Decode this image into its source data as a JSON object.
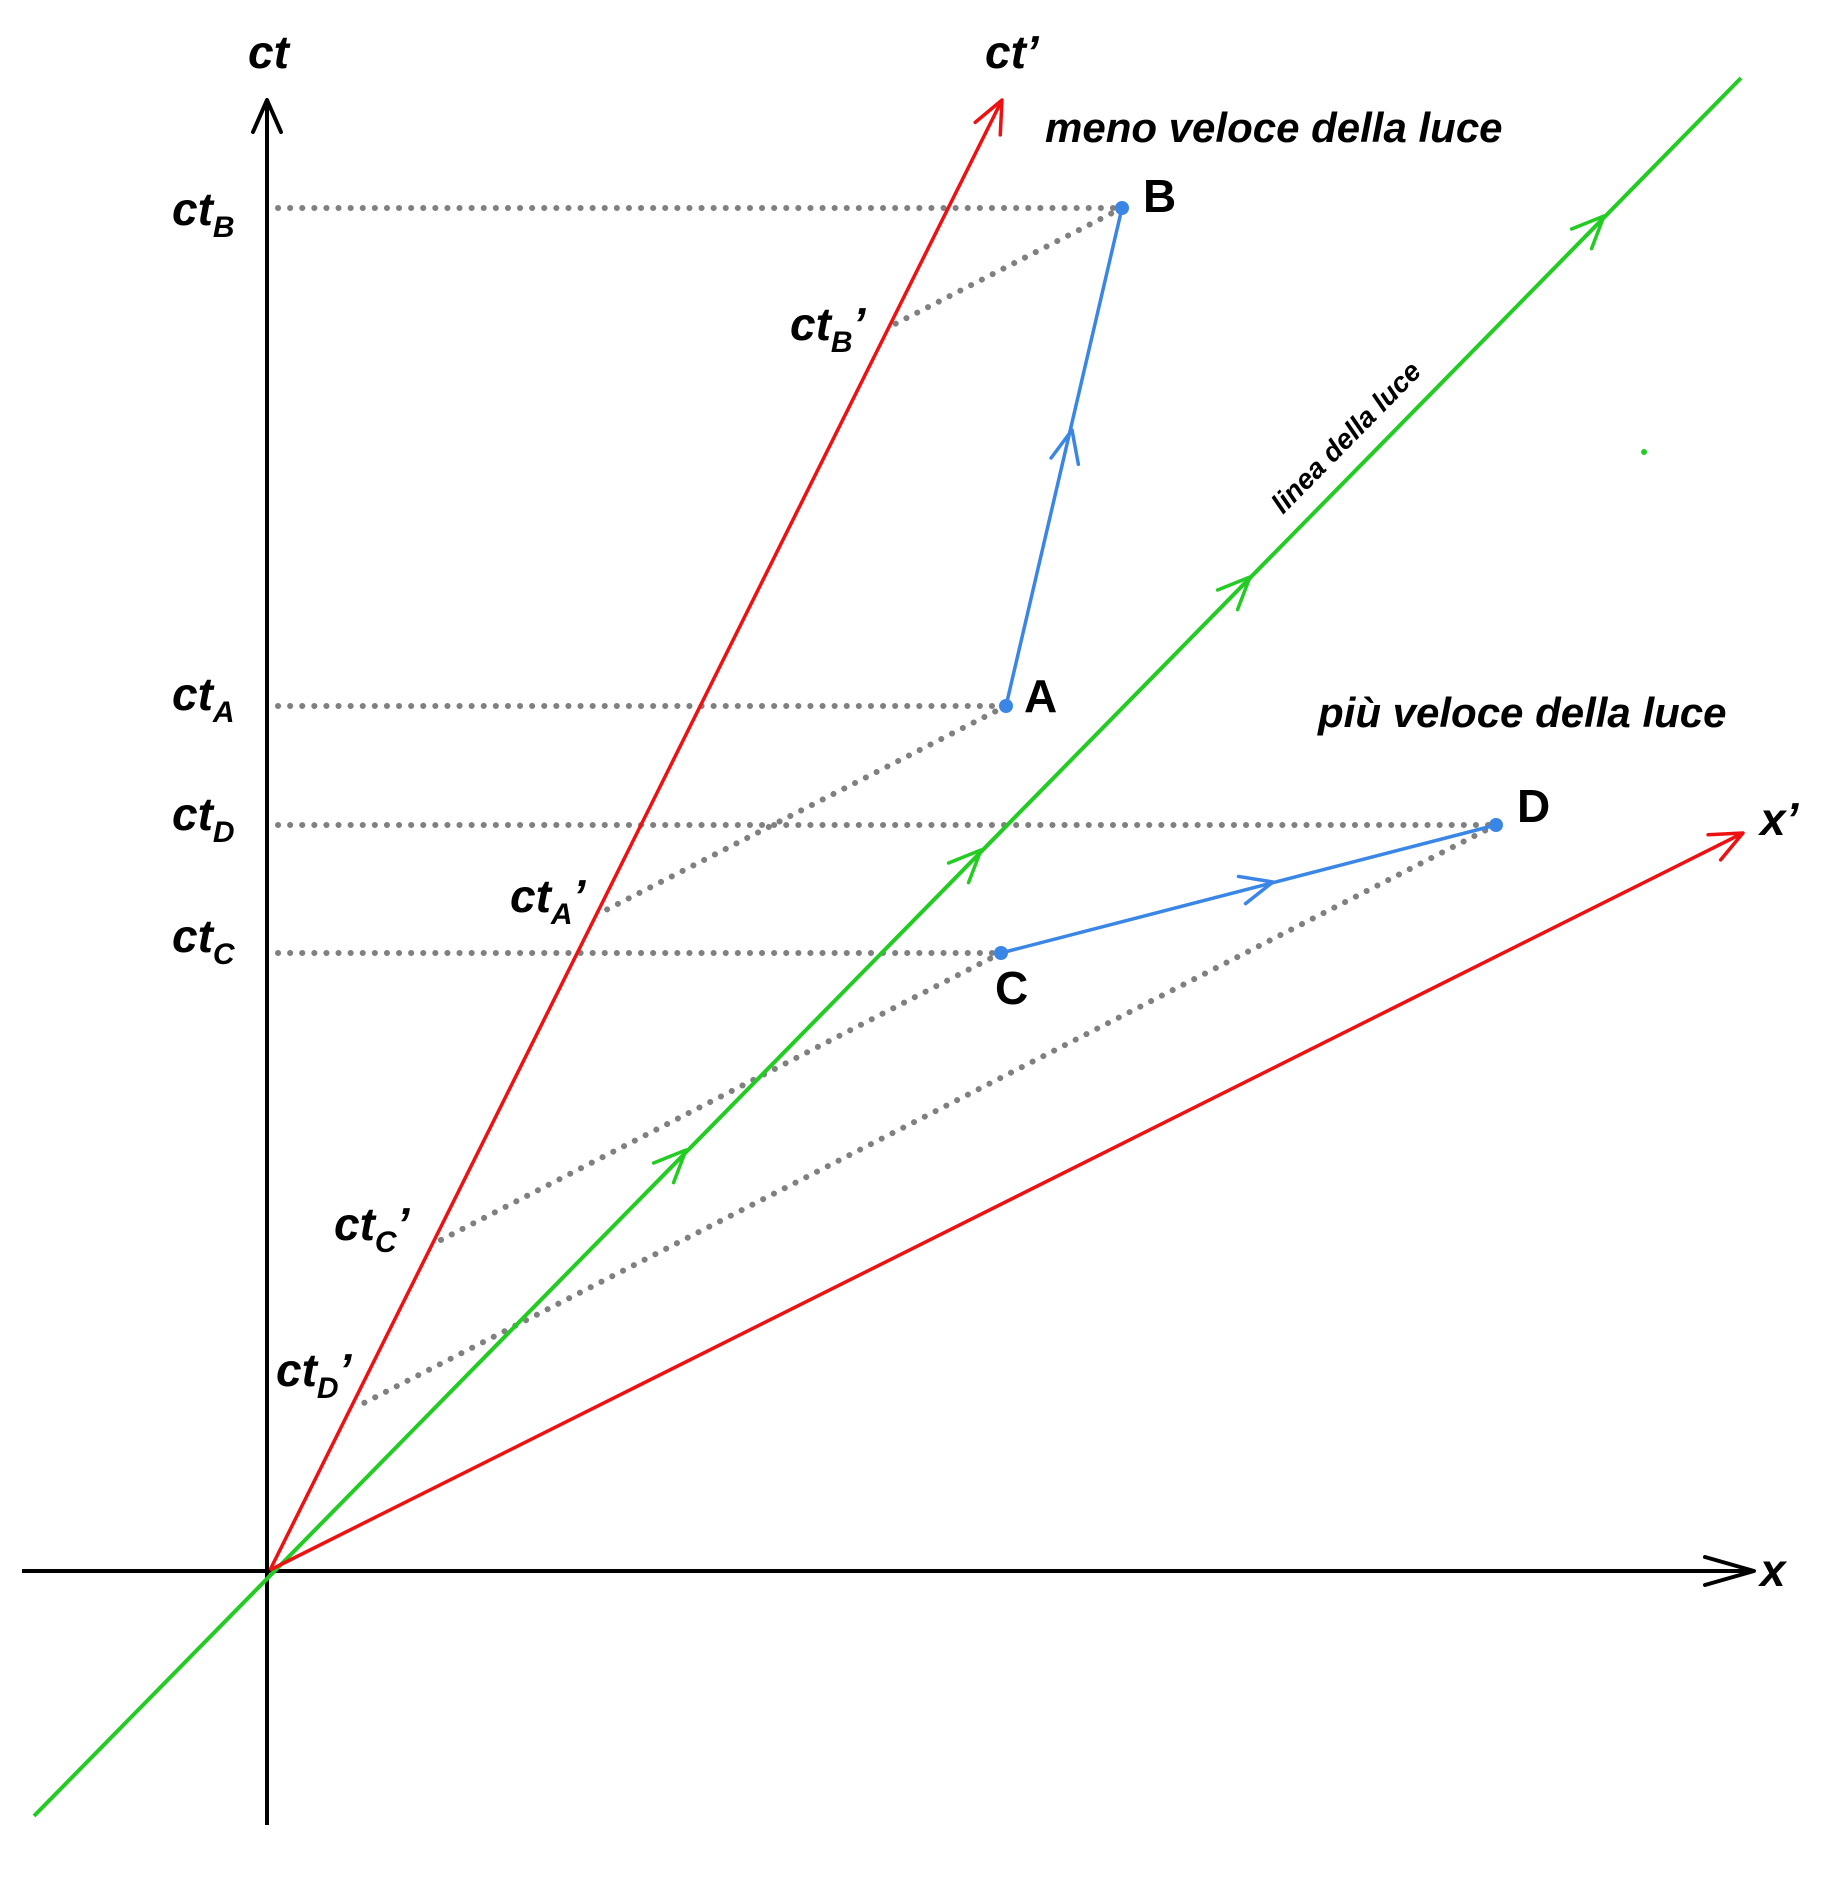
{
  "colors": {
    "axis": "#000000",
    "frame": "#ee1111",
    "light": "#22cc22",
    "worldline": "#3a86e6",
    "guide": "#555555"
  },
  "axes": {
    "ct": {
      "base": "ct",
      "sub": "",
      "prime": ""
    },
    "ct_prime": {
      "base": "ct",
      "sub": "",
      "prime": "’"
    },
    "x": {
      "base": "x",
      "sub": "",
      "prime": ""
    },
    "x_prime": {
      "base": "x",
      "sub": "",
      "prime": "’"
    }
  },
  "region_labels": {
    "slower": "meno veloce della luce",
    "faster": "più veloce della luce",
    "light_line": "linea della luce"
  },
  "events": {
    "A": "A",
    "B": "B",
    "C": "C",
    "D": "D"
  },
  "ticks": {
    "ctB": {
      "base": "ct",
      "sub": "B",
      "prime": ""
    },
    "ctA": {
      "base": "ct",
      "sub": "A",
      "prime": ""
    },
    "ctD": {
      "base": "ct",
      "sub": "D",
      "prime": ""
    },
    "ctC": {
      "base": "ct",
      "sub": "C",
      "prime": ""
    },
    "ctB_p": {
      "base": "ct",
      "sub": "B",
      "prime": "’"
    },
    "ctA_p": {
      "base": "ct",
      "sub": "A",
      "prime": "’"
    },
    "ctC_p": {
      "base": "ct",
      "sub": "C",
      "prime": "’"
    },
    "ctD_p": {
      "base": "ct",
      "sub": "D",
      "prime": "’"
    }
  }
}
